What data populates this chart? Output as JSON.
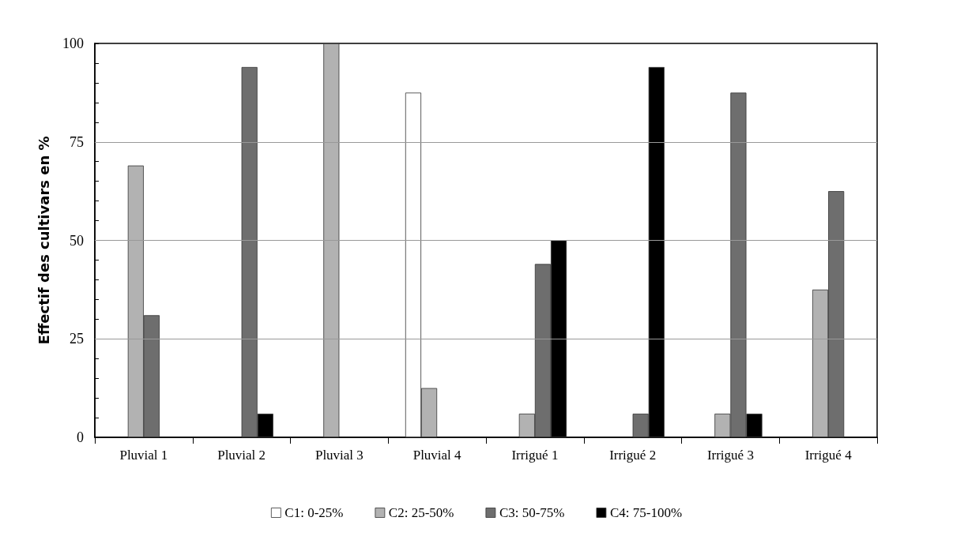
{
  "chart_data": {
    "type": "bar",
    "ylabel": "Effectif des cultivars en %",
    "categories": [
      "Pluvial 1",
      "Pluvial 2",
      "Pluvial 3",
      "Pluvial 4",
      "Irrigué 1",
      "Irrigué 2",
      "Irrigué 3",
      "Irrigué 4"
    ],
    "series": [
      {
        "name": "C1: 0-25%",
        "color": "#ffffff",
        "values": [
          0,
          0,
          0,
          87.5,
          0,
          0,
          0,
          0
        ]
      },
      {
        "name": "C2: 25-50%",
        "color": "#b2b2b2",
        "values": [
          69,
          0,
          100,
          12.5,
          6,
          0,
          6,
          37.5
        ]
      },
      {
        "name": "C3: 50-75%",
        "color": "#6e6e6e",
        "values": [
          31,
          94,
          0,
          0,
          44,
          6,
          87.5,
          62.5
        ]
      },
      {
        "name": "C4: 75-100%",
        "color": "#000000",
        "values": [
          0,
          6,
          0,
          0,
          50,
          94,
          6,
          0
        ]
      }
    ],
    "ylim": [
      0,
      100
    ],
    "yticks": [
      0,
      {
        "value": 5,
        "label": null
      },
      {
        "value": 10,
        "label": null
      },
      {
        "value": 15,
        "label": null
      },
      {
        "value": 20,
        "label": null
      },
      25,
      {
        "value": 30,
        "label": null
      },
      {
        "value": 35,
        "label": null
      },
      {
        "value": 40,
        "label": null
      },
      {
        "value": 45,
        "label": null
      },
      50,
      {
        "value": 55,
        "label": null
      },
      {
        "value": 60,
        "label": null
      },
      {
        "value": 65,
        "label": null
      },
      {
        "value": 70,
        "label": null
      },
      75,
      {
        "value": 80,
        "label": null
      },
      {
        "value": 85,
        "label": null
      },
      {
        "value": 90,
        "label": null
      },
      {
        "value": 95,
        "label": null
      },
      100
    ],
    "grid": "y",
    "legend": "bottom"
  }
}
